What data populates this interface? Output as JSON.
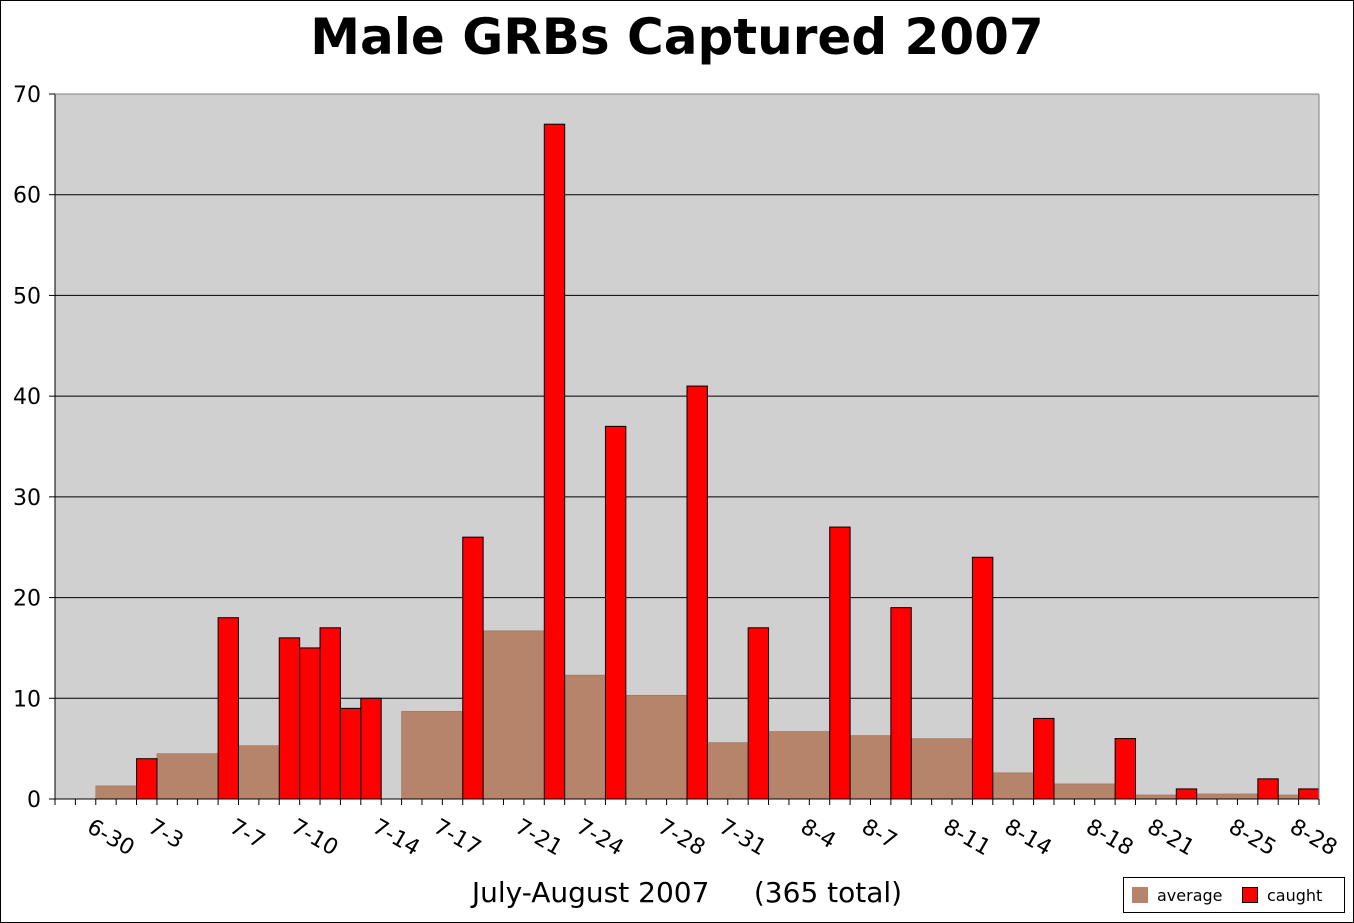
{
  "chart_data": {
    "type": "bar",
    "title": "Male GRBs Captured 2007",
    "xlabel": "July-August 2007     (365 total)",
    "ylabel": "",
    "ylim": [
      0,
      70
    ],
    "yticks": [
      0,
      10,
      20,
      30,
      40,
      50,
      60,
      70
    ],
    "grid": true,
    "legend_position": "bottom-right",
    "colors": {
      "average": "#b5846a",
      "caught": "#ff0000",
      "plot_background": "#d0d0d0"
    },
    "x_days": [
      "6-29",
      "6-30",
      "7-1",
      "7-2",
      "7-3",
      "7-4",
      "7-5",
      "7-6",
      "7-7",
      "7-8",
      "7-9",
      "7-10",
      "7-11",
      "7-12",
      "7-13",
      "7-14",
      "7-15",
      "7-16",
      "7-17",
      "7-18",
      "7-19",
      "7-20",
      "7-21",
      "7-22",
      "7-23",
      "7-24",
      "7-25",
      "7-26",
      "7-27",
      "7-28",
      "7-29",
      "7-30",
      "7-31",
      "8-1",
      "8-2",
      "8-3",
      "8-4",
      "8-5",
      "8-6",
      "8-7",
      "8-8",
      "8-9",
      "8-10",
      "8-11",
      "8-12",
      "8-13",
      "8-14",
      "8-15",
      "8-16",
      "8-17",
      "8-18",
      "8-19",
      "8-20",
      "8-21",
      "8-22",
      "8-23",
      "8-24",
      "8-25",
      "8-26",
      "8-27",
      "8-28",
      "8-29"
    ],
    "tick_labels": [
      {
        "day": "6-30",
        "label": "6-30"
      },
      {
        "day": "7-3",
        "label": "7-3"
      },
      {
        "day": "7-7",
        "label": "7-7"
      },
      {
        "day": "7-10",
        "label": "7-10"
      },
      {
        "day": "7-14",
        "label": "7-14"
      },
      {
        "day": "7-17",
        "label": "7-17"
      },
      {
        "day": "7-21",
        "label": "7-21"
      },
      {
        "day": "7-24",
        "label": "7-24"
      },
      {
        "day": "7-28",
        "label": "7-28"
      },
      {
        "day": "7-31",
        "label": "7-31"
      },
      {
        "day": "8-4",
        "label": "8-4"
      },
      {
        "day": "8-7",
        "label": "8-7"
      },
      {
        "day": "8-11",
        "label": "8-11"
      },
      {
        "day": "8-14",
        "label": "8-14"
      },
      {
        "day": "8-18",
        "label": "8-18"
      },
      {
        "day": "8-21",
        "label": "8-21"
      },
      {
        "day": "8-25",
        "label": "8-25"
      },
      {
        "day": "8-28",
        "label": "8-28"
      }
    ],
    "series": [
      {
        "name": "average",
        "segments": [
          {
            "from": "7-1",
            "to": "7-2",
            "value": 1.3
          },
          {
            "from": "7-4",
            "to": "7-6",
            "value": 4.5
          },
          {
            "from": "7-8",
            "to": "7-9",
            "value": 5.3
          },
          {
            "from": "7-16",
            "to": "7-18",
            "value": 8.7
          },
          {
            "from": "7-20",
            "to": "7-22",
            "value": 16.7
          },
          {
            "from": "7-24",
            "to": "7-25",
            "value": 12.3
          },
          {
            "from": "7-27",
            "to": "7-29",
            "value": 10.3
          },
          {
            "from": "7-31",
            "to": "8-1",
            "value": 5.6
          },
          {
            "from": "8-3",
            "to": "8-5",
            "value": 6.7
          },
          {
            "from": "8-7",
            "to": "8-8",
            "value": 6.3
          },
          {
            "from": "8-10",
            "to": "8-12",
            "value": 6.0
          },
          {
            "from": "8-14",
            "to": "8-15",
            "value": 2.6
          },
          {
            "from": "8-17",
            "to": "8-19",
            "value": 1.5
          },
          {
            "from": "8-21",
            "to": "8-22",
            "value": 0.4
          },
          {
            "from": "8-24",
            "to": "8-26",
            "value": 0.5
          },
          {
            "from": "8-28",
            "to": "8-28",
            "value": 0.4
          }
        ]
      },
      {
        "name": "caught",
        "points": [
          {
            "day": "7-3",
            "value": 4
          },
          {
            "day": "7-7",
            "value": 18
          },
          {
            "day": "7-10",
            "value": 16
          },
          {
            "day": "7-11",
            "value": 15
          },
          {
            "day": "7-12",
            "value": 17
          },
          {
            "day": "7-13",
            "value": 9
          },
          {
            "day": "7-14",
            "value": 10
          },
          {
            "day": "7-19",
            "value": 26
          },
          {
            "day": "7-23",
            "value": 67
          },
          {
            "day": "7-26",
            "value": 37
          },
          {
            "day": "7-30",
            "value": 41
          },
          {
            "day": "8-2",
            "value": 17
          },
          {
            "day": "8-6",
            "value": 27
          },
          {
            "day": "8-9",
            "value": 19
          },
          {
            "day": "8-13",
            "value": 24
          },
          {
            "day": "8-16",
            "value": 8
          },
          {
            "day": "8-20",
            "value": 6
          },
          {
            "day": "8-23",
            "value": 1
          },
          {
            "day": "8-27",
            "value": 2
          },
          {
            "day": "8-29",
            "value": 1
          }
        ]
      }
    ]
  },
  "legend": {
    "average_label": "average",
    "caught_label": "caught"
  }
}
